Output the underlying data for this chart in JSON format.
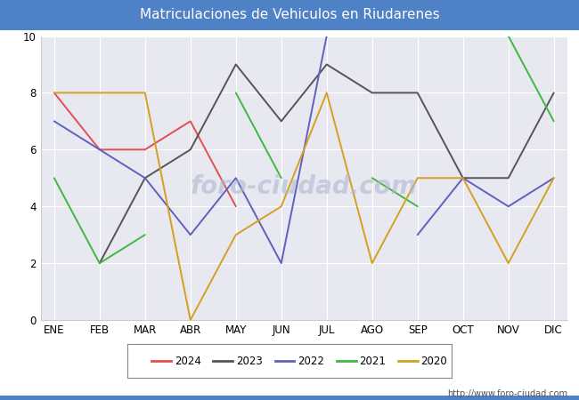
{
  "title": "Matriculaciones de Vehiculos en Riudarenes",
  "title_bg_color": "#4f81c7",
  "title_text_color": "white",
  "months": [
    "ENE",
    "FEB",
    "MAR",
    "ABR",
    "MAY",
    "JUN",
    "JUL",
    "AGO",
    "SEP",
    "OCT",
    "NOV",
    "DIC"
  ],
  "series": {
    "2024": {
      "color": "#e05050",
      "data": [
        8,
        6,
        6,
        7,
        4,
        null,
        null,
        null,
        null,
        null,
        null,
        null
      ]
    },
    "2023": {
      "color": "#555555",
      "data": [
        null,
        2,
        5,
        6,
        9,
        7,
        9,
        8,
        8,
        5,
        5,
        8
      ]
    },
    "2022": {
      "color": "#6060c0",
      "data": [
        7,
        6,
        5,
        3,
        5,
        2,
        10,
        null,
        3,
        5,
        4,
        5
      ]
    },
    "2021": {
      "color": "#40b840",
      "data": [
        5,
        2,
        3,
        null,
        8,
        5,
        null,
        5,
        4,
        null,
        10,
        7
      ]
    },
    "2020": {
      "color": "#d4a020",
      "data": [
        8,
        8,
        8,
        0,
        3,
        4,
        8,
        2,
        5,
        5,
        2,
        5
      ]
    }
  },
  "ylim": [
    0,
    10
  ],
  "yticks": [
    0,
    2,
    4,
    6,
    8,
    10
  ],
  "watermark_plot": "foro-ciudad.com",
  "watermark_url": "http://www.foro-ciudad.com",
  "plot_bg_color": "#e8e8f0",
  "grid_color": "white",
  "fig_bg_color": "#ffffff"
}
